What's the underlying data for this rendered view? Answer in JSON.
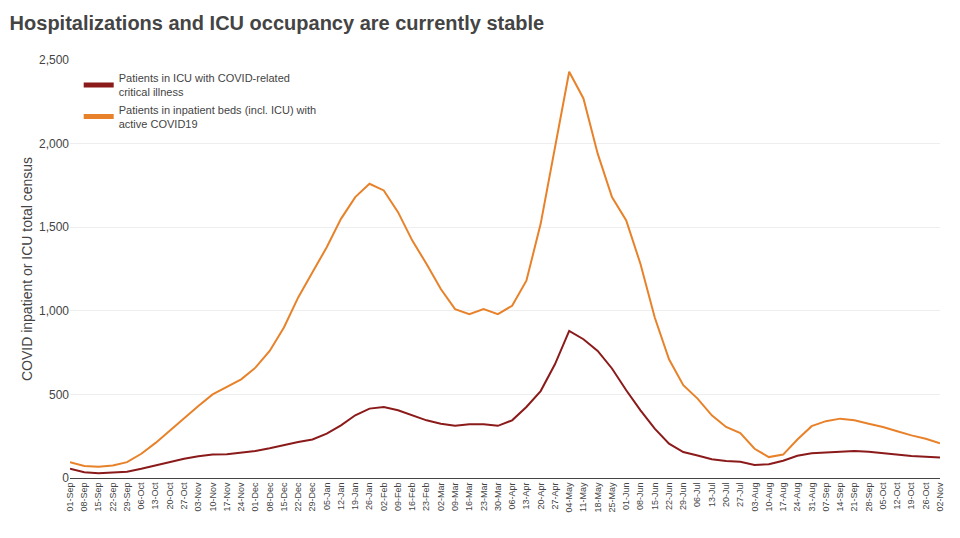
{
  "chart_data": {
    "type": "line",
    "title": "Hospitalizations and ICU occupancy are currently stable",
    "ylabel": "COVID inpatient or ICU total census",
    "categories": [
      "01-Sep",
      "08-Sep",
      "15-Sep",
      "22-Sep",
      "29-Sep",
      "06-Oct",
      "13-Oct",
      "20-Oct",
      "27-Oct",
      "03-Nov",
      "10-Nov",
      "17-Nov",
      "24-Nov",
      "01-Dec",
      "08-Dec",
      "15-Dec",
      "22-Dec",
      "29-Dec",
      "05-Jan",
      "12-Jan",
      "19-Jan",
      "26-Jan",
      "02-Feb",
      "09-Feb",
      "16-Feb",
      "23-Feb",
      "02-Mar",
      "09-Mar",
      "16-Mar",
      "23-Mar",
      "30-Mar",
      "06-Apr",
      "13-Apr",
      "20-Apr",
      "27-Apr",
      "04-May",
      "11-May",
      "18-May",
      "25-May",
      "01-Jun",
      "08-Jun",
      "15-Jun",
      "22-Jun",
      "29-Jun",
      "06-Jul",
      "13-Jul",
      "20-Jul",
      "27-Jul",
      "03-Aug",
      "10-Aug",
      "17-Aug",
      "24-Aug",
      "31-Aug",
      "07-Sep",
      "14-Sep",
      "21-Sep",
      "28-Sep",
      "05-Oct",
      "12-Oct",
      "19-Oct",
      "26-Oct",
      "02-Nov"
    ],
    "series": [
      {
        "name": "Patients in ICU with COVID-related\ncritical illness",
        "color": "#8B1A1A",
        "values": [
          55,
          35,
          28,
          32,
          38,
          55,
          75,
          95,
          115,
          130,
          140,
          142,
          152,
          162,
          178,
          198,
          215,
          230,
          265,
          315,
          375,
          415,
          425,
          405,
          375,
          345,
          325,
          312,
          322,
          322,
          312,
          345,
          425,
          520,
          680,
          880,
          830,
          760,
          655,
          525,
          405,
          295,
          205,
          155,
          135,
          112,
          102,
          97,
          78,
          82,
          103,
          133,
          148,
          152,
          157,
          162,
          157,
          148,
          142,
          132,
          127,
          122
        ]
      },
      {
        "name": "Patients in inpatient beds (incl. ICU) with\nactive COVID19",
        "color": "#E8822A",
        "values": [
          95,
          72,
          68,
          75,
          95,
          145,
          210,
          285,
          360,
          430,
          500,
          545,
          590,
          660,
          760,
          900,
          1080,
          1230,
          1380,
          1550,
          1680,
          1760,
          1720,
          1590,
          1420,
          1280,
          1130,
          1010,
          980,
          1010,
          980,
          1030,
          1180,
          1520,
          1980,
          2430,
          2270,
          1940,
          1680,
          1540,
          1280,
          960,
          710,
          555,
          475,
          375,
          305,
          268,
          175,
          125,
          140,
          230,
          310,
          340,
          355,
          345,
          325,
          305,
          280,
          255,
          235,
          208
        ]
      }
    ],
    "ylim": [
      0,
      2500
    ],
    "yticks": [
      0,
      500,
      {
        "value": 1000,
        "label": "1,000"
      },
      {
        "value": 1500,
        "label": "1,500"
      },
      {
        "value": 2000,
        "label": "2,000"
      },
      {
        "value": 2500,
        "label": "2,500"
      }
    ],
    "grid": true,
    "legend": "upper left"
  }
}
